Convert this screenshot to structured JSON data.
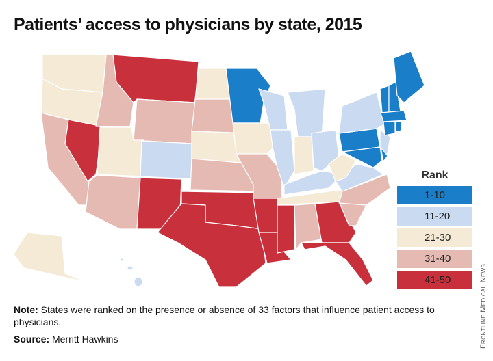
{
  "title": "Patients’ access to physicians by state, 2015",
  "legend": {
    "title": "Rank",
    "items": [
      {
        "label": "1-10",
        "color": "#1a7ec8"
      },
      {
        "label": "11-20",
        "color": "#c9daf1"
      },
      {
        "label": "21-30",
        "color": "#f4ead5"
      },
      {
        "label": "31-40",
        "color": "#e5bab3"
      },
      {
        "label": "41-50",
        "color": "#c8303c"
      }
    ]
  },
  "note": {
    "label": "Note:",
    "text": "States were ranked on the presence or absence of 33 factors that influence patient access to physicians."
  },
  "source": {
    "label": "Source:",
    "text": "Merritt Hawkins"
  },
  "credit": "Frontline Medical News"
}
